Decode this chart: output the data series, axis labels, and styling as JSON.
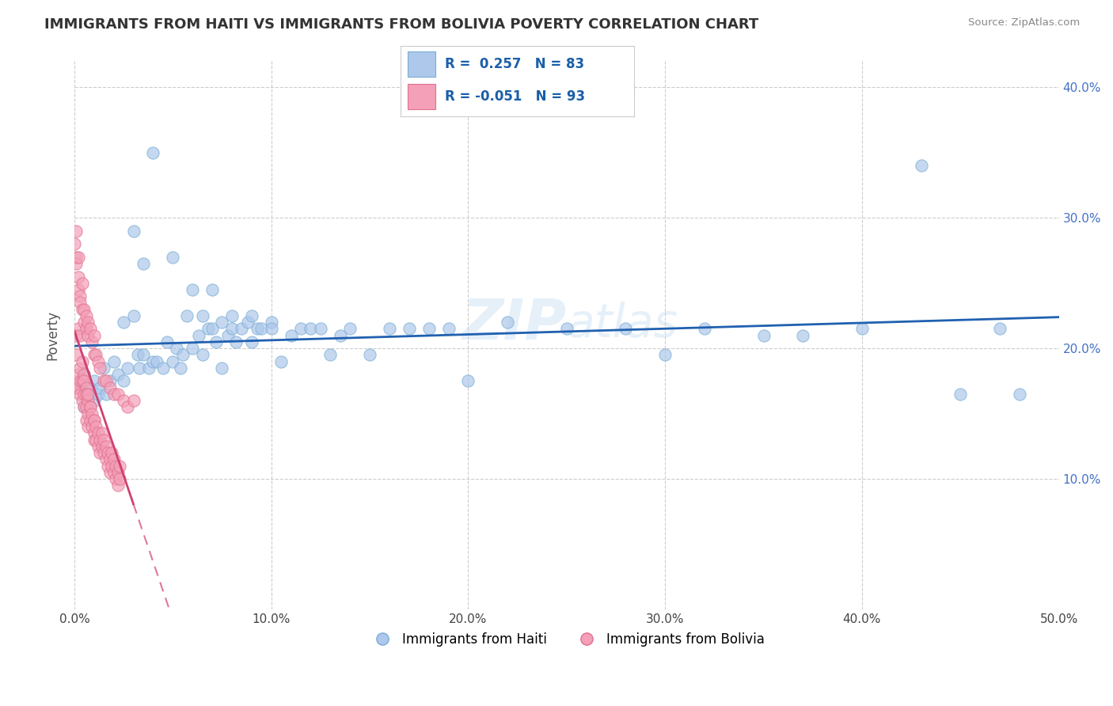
{
  "title": "IMMIGRANTS FROM HAITI VS IMMIGRANTS FROM BOLIVIA POVERTY CORRELATION CHART",
  "source": "Source: ZipAtlas.com",
  "ylabel": "Poverty",
  "xlim": [
    0.0,
    0.5
  ],
  "ylim": [
    0.0,
    0.42
  ],
  "xtick_labels": [
    "0.0%",
    "10.0%",
    "20.0%",
    "30.0%",
    "40.0%",
    "50.0%"
  ],
  "xtick_values": [
    0.0,
    0.1,
    0.2,
    0.3,
    0.4,
    0.5
  ],
  "ytick_labels": [
    "",
    "10.0%",
    "20.0%",
    "30.0%",
    "40.0%"
  ],
  "ytick_values": [
    0.0,
    0.1,
    0.2,
    0.3,
    0.4
  ],
  "haiti_color": "#adc8eb",
  "haiti_edge": "#7aadd4",
  "bolivia_color": "#f4a0b8",
  "bolivia_edge": "#e0708e",
  "haiti_R": 0.257,
  "haiti_N": 83,
  "bolivia_R": -0.051,
  "bolivia_N": 93,
  "legend_haiti_label": "Immigrants from Haiti",
  "legend_bolivia_label": "Immigrants from Bolivia",
  "watermark_text": "ZIPatlas",
  "background_color": "#ffffff",
  "grid_color": "#cccccc",
  "haiti_line_color": "#2060b0",
  "bolivia_line_color": "#d04070",
  "haiti_scatter": [
    [
      0.005,
      0.155
    ],
    [
      0.005,
      0.18
    ],
    [
      0.007,
      0.165
    ],
    [
      0.008,
      0.17
    ],
    [
      0.01,
      0.16
    ],
    [
      0.01,
      0.175
    ],
    [
      0.012,
      0.165
    ],
    [
      0.013,
      0.17
    ],
    [
      0.015,
      0.185
    ],
    [
      0.016,
      0.165
    ],
    [
      0.018,
      0.175
    ],
    [
      0.02,
      0.19
    ],
    [
      0.022,
      0.18
    ],
    [
      0.025,
      0.175
    ],
    [
      0.025,
      0.22
    ],
    [
      0.027,
      0.185
    ],
    [
      0.03,
      0.225
    ],
    [
      0.03,
      0.29
    ],
    [
      0.032,
      0.195
    ],
    [
      0.033,
      0.185
    ],
    [
      0.035,
      0.195
    ],
    [
      0.035,
      0.265
    ],
    [
      0.038,
      0.185
    ],
    [
      0.04,
      0.19
    ],
    [
      0.04,
      0.35
    ],
    [
      0.042,
      0.19
    ],
    [
      0.045,
      0.185
    ],
    [
      0.047,
      0.205
    ],
    [
      0.05,
      0.19
    ],
    [
      0.05,
      0.27
    ],
    [
      0.052,
      0.2
    ],
    [
      0.054,
      0.185
    ],
    [
      0.055,
      0.195
    ],
    [
      0.057,
      0.225
    ],
    [
      0.06,
      0.2
    ],
    [
      0.06,
      0.245
    ],
    [
      0.063,
      0.21
    ],
    [
      0.065,
      0.225
    ],
    [
      0.065,
      0.195
    ],
    [
      0.068,
      0.215
    ],
    [
      0.07,
      0.215
    ],
    [
      0.07,
      0.245
    ],
    [
      0.072,
      0.205
    ],
    [
      0.075,
      0.185
    ],
    [
      0.075,
      0.22
    ],
    [
      0.078,
      0.21
    ],
    [
      0.08,
      0.215
    ],
    [
      0.08,
      0.225
    ],
    [
      0.082,
      0.205
    ],
    [
      0.085,
      0.215
    ],
    [
      0.088,
      0.22
    ],
    [
      0.09,
      0.205
    ],
    [
      0.09,
      0.225
    ],
    [
      0.093,
      0.215
    ],
    [
      0.095,
      0.215
    ],
    [
      0.1,
      0.22
    ],
    [
      0.1,
      0.215
    ],
    [
      0.105,
      0.19
    ],
    [
      0.11,
      0.21
    ],
    [
      0.115,
      0.215
    ],
    [
      0.12,
      0.215
    ],
    [
      0.125,
      0.215
    ],
    [
      0.13,
      0.195
    ],
    [
      0.135,
      0.21
    ],
    [
      0.14,
      0.215
    ],
    [
      0.15,
      0.195
    ],
    [
      0.16,
      0.215
    ],
    [
      0.17,
      0.215
    ],
    [
      0.18,
      0.215
    ],
    [
      0.19,
      0.215
    ],
    [
      0.2,
      0.175
    ],
    [
      0.22,
      0.22
    ],
    [
      0.25,
      0.215
    ],
    [
      0.28,
      0.215
    ],
    [
      0.3,
      0.195
    ],
    [
      0.32,
      0.215
    ],
    [
      0.35,
      0.21
    ],
    [
      0.37,
      0.21
    ],
    [
      0.4,
      0.215
    ],
    [
      0.43,
      0.34
    ],
    [
      0.45,
      0.165
    ],
    [
      0.47,
      0.215
    ],
    [
      0.48,
      0.165
    ]
  ],
  "bolivia_scatter": [
    [
      0.0,
      0.17
    ],
    [
      0.001,
      0.17
    ],
    [
      0.001,
      0.21
    ],
    [
      0.001,
      0.195
    ],
    [
      0.002,
      0.18
    ],
    [
      0.002,
      0.215
    ],
    [
      0.002,
      0.17
    ],
    [
      0.003,
      0.185
    ],
    [
      0.003,
      0.21
    ],
    [
      0.003,
      0.175
    ],
    [
      0.003,
      0.165
    ],
    [
      0.004,
      0.175
    ],
    [
      0.004,
      0.19
    ],
    [
      0.004,
      0.16
    ],
    [
      0.005,
      0.18
    ],
    [
      0.005,
      0.165
    ],
    [
      0.005,
      0.175
    ],
    [
      0.005,
      0.155
    ],
    [
      0.006,
      0.17
    ],
    [
      0.006,
      0.155
    ],
    [
      0.006,
      0.165
    ],
    [
      0.006,
      0.145
    ],
    [
      0.007,
      0.16
    ],
    [
      0.007,
      0.15
    ],
    [
      0.007,
      0.165
    ],
    [
      0.007,
      0.14
    ],
    [
      0.008,
      0.155
    ],
    [
      0.008,
      0.145
    ],
    [
      0.008,
      0.155
    ],
    [
      0.009,
      0.14
    ],
    [
      0.009,
      0.15
    ],
    [
      0.01,
      0.145
    ],
    [
      0.01,
      0.135
    ],
    [
      0.01,
      0.145
    ],
    [
      0.01,
      0.13
    ],
    [
      0.011,
      0.14
    ],
    [
      0.011,
      0.13
    ],
    [
      0.012,
      0.135
    ],
    [
      0.012,
      0.125
    ],
    [
      0.013,
      0.13
    ],
    [
      0.013,
      0.12
    ],
    [
      0.014,
      0.125
    ],
    [
      0.014,
      0.135
    ],
    [
      0.015,
      0.12
    ],
    [
      0.015,
      0.13
    ],
    [
      0.016,
      0.115
    ],
    [
      0.016,
      0.125
    ],
    [
      0.017,
      0.12
    ],
    [
      0.017,
      0.11
    ],
    [
      0.018,
      0.115
    ],
    [
      0.018,
      0.105
    ],
    [
      0.019,
      0.11
    ],
    [
      0.019,
      0.12
    ],
    [
      0.02,
      0.105
    ],
    [
      0.02,
      0.115
    ],
    [
      0.021,
      0.11
    ],
    [
      0.021,
      0.1
    ],
    [
      0.022,
      0.105
    ],
    [
      0.022,
      0.095
    ],
    [
      0.023,
      0.1
    ],
    [
      0.023,
      0.11
    ],
    [
      0.0,
      0.28
    ],
    [
      0.001,
      0.29
    ],
    [
      0.001,
      0.27
    ],
    [
      0.001,
      0.265
    ],
    [
      0.002,
      0.27
    ],
    [
      0.002,
      0.255
    ],
    [
      0.002,
      0.245
    ],
    [
      0.003,
      0.24
    ],
    [
      0.003,
      0.235
    ],
    [
      0.004,
      0.25
    ],
    [
      0.004,
      0.23
    ],
    [
      0.005,
      0.22
    ],
    [
      0.005,
      0.23
    ],
    [
      0.006,
      0.215
    ],
    [
      0.006,
      0.225
    ],
    [
      0.007,
      0.21
    ],
    [
      0.007,
      0.22
    ],
    [
      0.008,
      0.215
    ],
    [
      0.009,
      0.205
    ],
    [
      0.01,
      0.21
    ],
    [
      0.01,
      0.195
    ],
    [
      0.011,
      0.195
    ],
    [
      0.012,
      0.19
    ],
    [
      0.013,
      0.185
    ],
    [
      0.015,
      0.175
    ],
    [
      0.016,
      0.175
    ],
    [
      0.018,
      0.17
    ],
    [
      0.02,
      0.165
    ],
    [
      0.022,
      0.165
    ],
    [
      0.025,
      0.16
    ],
    [
      0.027,
      0.155
    ],
    [
      0.03,
      0.16
    ]
  ]
}
